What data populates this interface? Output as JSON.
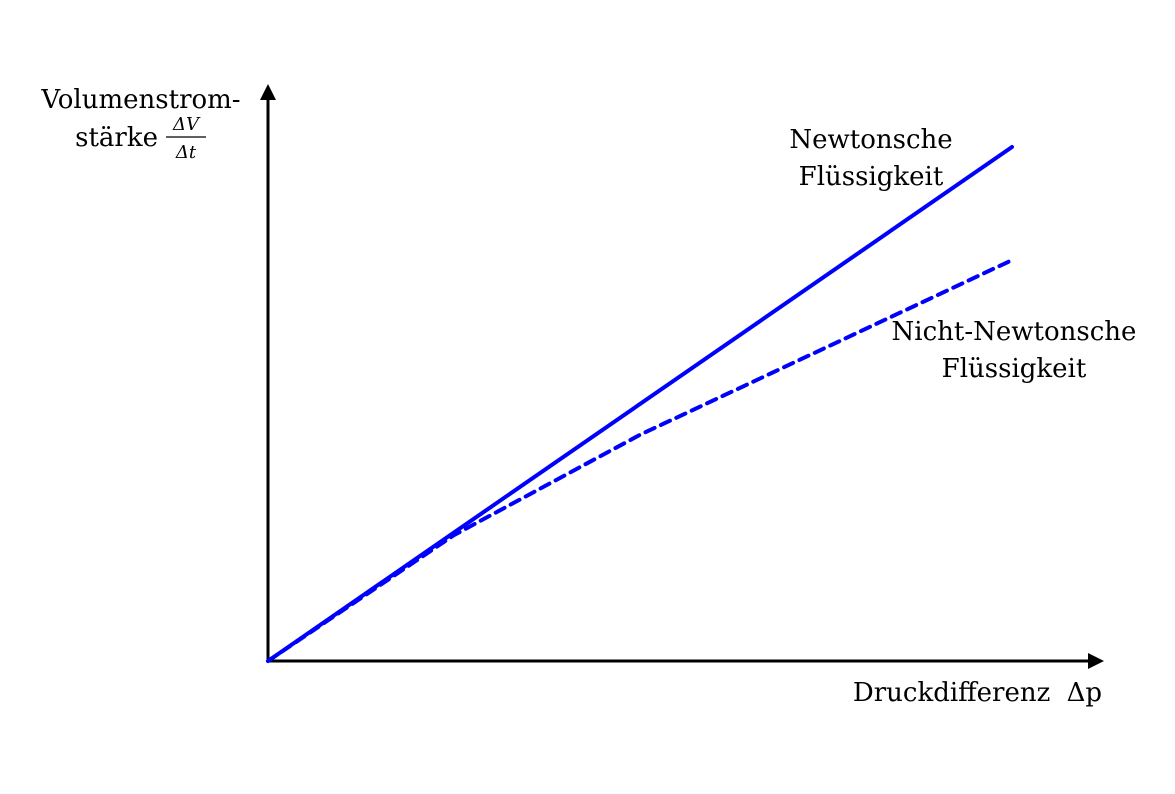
{
  "chart_data": {
    "type": "line",
    "title": "",
    "xlabel": "Druckdifferenz Δp",
    "xlabel_text": "Druckdifferenz",
    "xlabel_symbol": "Δp",
    "ylabel_line1": "Volumenstrom-",
    "ylabel_line2": "stärke",
    "ylabel_fraction_num": "ΔV",
    "ylabel_fraction_den": "Δt",
    "xlim": [
      0,
      1
    ],
    "ylim": [
      0,
      1
    ],
    "grid": false,
    "ticks": false,
    "series": [
      {
        "name": "Newtonsche Flüssigkeit",
        "label_line1": "Newtonsche",
        "label_line2": "Flüssigkeit",
        "style": "solid",
        "color": "#0000ff",
        "x": [
          0,
          1
        ],
        "y": [
          0,
          1
        ]
      },
      {
        "name": "Nicht-Newtonsche Flüssigkeit",
        "label_line1": "Nicht-Newtonsche",
        "label_line2": "Flüssigkeit",
        "style": "dashed",
        "color": "#0000ff",
        "x": [
          0,
          0.25,
          0.5,
          0.75,
          1
        ],
        "y": [
          0,
          0.245,
          0.44,
          0.61,
          0.78
        ]
      }
    ]
  }
}
